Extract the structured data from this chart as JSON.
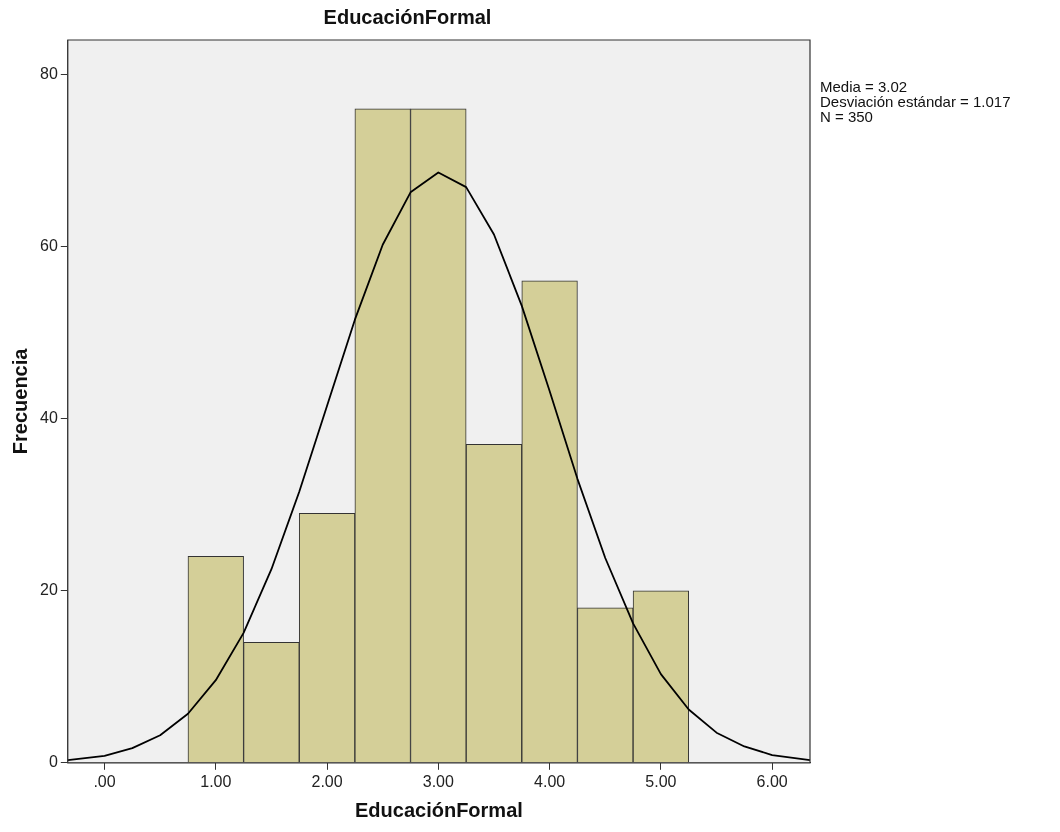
{
  "chart_data": {
    "type": "histogram",
    "title": "EducaciónFormal",
    "xlabel": "EducaciónFormal",
    "ylabel": "Frecuencia",
    "bins": [
      0.75,
      1.25,
      1.75,
      2.25,
      2.75,
      3.25,
      3.75,
      4.25,
      4.75,
      5.25
    ],
    "values": [
      24,
      14,
      29,
      76,
      76,
      37,
      56,
      18,
      20
    ],
    "color": "#d4cf98",
    "series": [
      {
        "type": "line",
        "color": "#000000",
        "marker": "none",
        "x": [
          -0.33,
          0,
          0.25,
          0.5,
          0.75,
          1,
          1.25,
          1.5,
          1.75,
          2,
          2.25,
          2.5,
          2.75,
          3,
          3.25,
          3.5,
          3.75,
          4,
          4.25,
          4.5,
          4.75,
          5,
          5.25,
          5.5,
          5.75,
          6,
          6.34
        ],
        "values": [
          0.3,
          0.8,
          1.7,
          3.2,
          5.7,
          9.6,
          15.1,
          22.5,
          31.5,
          41.5,
          51.5,
          60.2,
          66.3,
          68.6,
          66.9,
          61.4,
          53.1,
          43.2,
          33.0,
          23.8,
          16.2,
          10.3,
          6.2,
          3.5,
          1.9,
          0.9,
          0.3
        ]
      }
    ],
    "xlim": [
      -0.33,
      6.34
    ],
    "ylim": [
      0,
      84
    ],
    "xticks": [
      {
        "value": 0,
        "label": ".00"
      },
      {
        "value": 1,
        "label": "1.00"
      },
      {
        "value": 2,
        "label": "2.00"
      },
      {
        "value": 3,
        "label": "3.00"
      },
      {
        "value": 4,
        "label": "4.00"
      },
      {
        "value": 5,
        "label": "5.00"
      },
      {
        "value": 6,
        "label": "6.00"
      }
    ],
    "yticks": [
      0,
      20,
      40,
      60,
      80
    ],
    "legend": false,
    "annotations": [
      "Media = 3.02",
      "Desviación estándar = 1.017",
      "N = 350"
    ]
  }
}
